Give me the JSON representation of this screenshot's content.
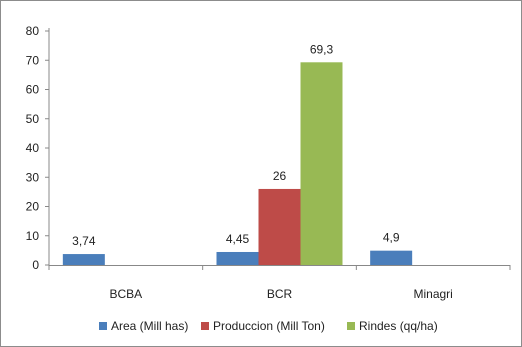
{
  "chart_data": {
    "type": "bar",
    "categories": [
      "BCBA",
      "BCR",
      "Minagri"
    ],
    "series": [
      {
        "name": "Area (Mill has)",
        "color": "#4a7ebb",
        "values": [
          3.74,
          4.45,
          4.9
        ],
        "labels": [
          "3,74",
          "4,45",
          "4,9"
        ]
      },
      {
        "name": "Produccion (Mill Ton)",
        "color": "#be4b48",
        "values": [
          null,
          26,
          null
        ],
        "labels": [
          "",
          "26",
          ""
        ]
      },
      {
        "name": "Rindes (qq/ha)",
        "color": "#98b954",
        "values": [
          null,
          69.3,
          null
        ],
        "labels": [
          "",
          "69,3",
          ""
        ]
      }
    ],
    "ylim": [
      0,
      80
    ],
    "yticks": [
      0,
      10,
      20,
      30,
      40,
      50,
      60,
      70,
      80
    ],
    "grid": false,
    "legend_position": "bottom"
  }
}
